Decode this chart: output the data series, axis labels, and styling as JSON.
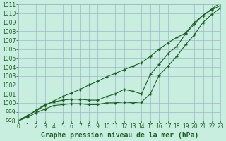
{
  "xlabel": "Graphe pression niveau de la mer (hPa)",
  "xlim": [
    0,
    23
  ],
  "ylim": [
    998,
    1011
  ],
  "yticks": [
    998,
    999,
    1000,
    1001,
    1002,
    1003,
    1004,
    1005,
    1006,
    1007,
    1008,
    1009,
    1010,
    1011
  ],
  "xticks": [
    0,
    1,
    2,
    3,
    4,
    5,
    6,
    7,
    8,
    9,
    10,
    11,
    12,
    13,
    14,
    15,
    16,
    17,
    18,
    19,
    20,
    21,
    22,
    23
  ],
  "bg_color": "#c8eee0",
  "grid_color": "#a0b8c8",
  "line_color": "#1a6020",
  "line1_y": [
    998.0,
    998.6,
    999.1,
    999.7,
    1000.2,
    1000.7,
    1001.1,
    1001.5,
    1002.0,
    1002.4,
    1002.9,
    1003.3,
    1003.7,
    1004.1,
    1004.5,
    1005.2,
    1006.0,
    1006.7,
    1007.3,
    1007.8,
    1009.0,
    1009.8,
    1010.4,
    1010.9
  ],
  "line2_y": [
    998.0,
    998.5,
    999.2,
    999.8,
    1000.1,
    1000.3,
    1000.4,
    1000.4,
    1000.3,
    1000.3,
    1000.7,
    1001.0,
    1001.5,
    1001.3,
    1001.0,
    1003.2,
    1004.3,
    1005.5,
    1006.3,
    1007.7,
    1008.8,
    1009.8,
    1010.5,
    1011.2
  ],
  "line3_y": [
    998.0,
    998.4,
    998.9,
    999.3,
    999.7,
    999.8,
    999.9,
    999.9,
    999.8,
    999.8,
    1000.0,
    1000.0,
    1000.1,
    1000.0,
    1000.1,
    1001.0,
    1003.1,
    1004.1,
    1005.2,
    1006.5,
    1007.6,
    1009.0,
    1009.9,
    1010.6
  ],
  "marker": "+",
  "markersize": 3,
  "markeredgewidth": 1.0,
  "linewidth": 0.8,
  "xlabel_fontsize": 7,
  "tick_fontsize": 5.5
}
